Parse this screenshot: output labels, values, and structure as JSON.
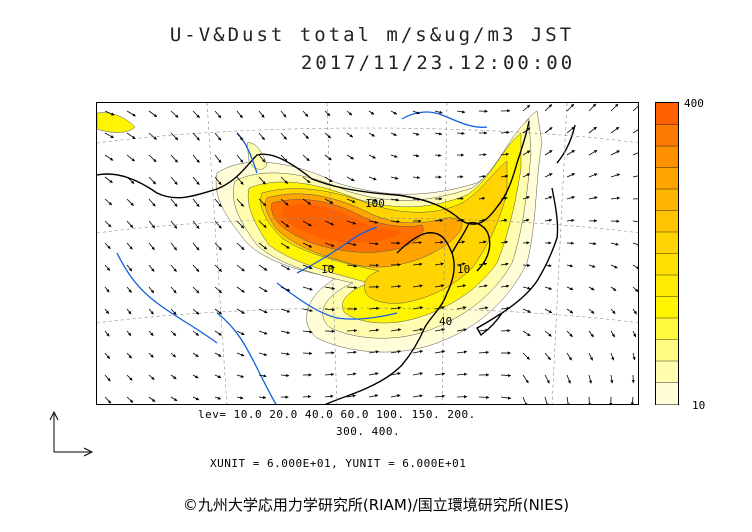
{
  "header": {
    "title": "U-V&Dust total m/s&ug/m3 JST",
    "timestamp": "2017/11/23.12:00:00"
  },
  "colorbar": {
    "max_label": "400",
    "min_label": "10",
    "colors": [
      "#ff6000",
      "#ff7a00",
      "#ff9000",
      "#ffa400",
      "#ffb400",
      "#ffc400",
      "#ffd400",
      "#ffe000",
      "#ffec00",
      "#fff500",
      "#fffa40",
      "#fffc80",
      "#fffdb0",
      "#fffed8"
    ]
  },
  "legend": {
    "levels_line1": "lev= 10.0 20.0 40.0 60.0 100. 150. 200.",
    "levels_line2": "300. 400.",
    "units": "XUNIT = 6.000E+01, YUNIT = 6.000E+01"
  },
  "map": {
    "contour_labels": [
      "100",
      "10",
      "10",
      "40"
    ]
  },
  "footer": {
    "copyright": "©九州大学応用力学研究所(RIAM)/国立環境研究所(NIES)"
  }
}
